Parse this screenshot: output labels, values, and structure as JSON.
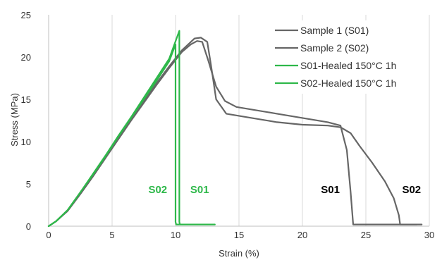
{
  "chart_data": {
    "type": "line",
    "title": "",
    "xlabel": "Strain (%)",
    "ylabel": "Stress (MPa)",
    "xlim": [
      0,
      30
    ],
    "ylim": [
      0,
      25
    ],
    "x_ticks": [
      0,
      5,
      10,
      15,
      20,
      25,
      30
    ],
    "y_ticks": [
      0,
      5,
      10,
      15,
      20,
      25
    ],
    "grid": "vertical",
    "legend_position": "top-right",
    "colors": {
      "gray": "#666666",
      "green": "#2eb84a",
      "annotation_black": "#000000",
      "grid": "#d9d9d9"
    },
    "series": [
      {
        "name": "Sample 1 (S01)",
        "color": "#666666",
        "x": [
          0,
          0.6,
          1.5,
          2.5,
          3.5,
          4.5,
          5.5,
          6.5,
          7.5,
          8.5,
          9.5,
          10.5,
          11.2,
          11.7,
          12.1,
          12.6,
          13.2,
          13.9,
          14.8,
          16,
          18,
          20,
          22,
          23,
          23.5,
          23.8,
          24,
          28,
          29
        ],
        "y": [
          0,
          0.6,
          1.8,
          3.8,
          5.9,
          8.1,
          10.3,
          12.5,
          14.6,
          16.7,
          18.7,
          20.6,
          21.5,
          21.9,
          21.8,
          19.5,
          16.5,
          14.8,
          14.1,
          13.8,
          13.3,
          12.8,
          12.3,
          11.9,
          9,
          4,
          0.2,
          0.2,
          0.2
        ]
      },
      {
        "name": "Sample 2 (S02)",
        "color": "#666666",
        "x": [
          0,
          0.6,
          1.5,
          2.5,
          3.5,
          4.5,
          5.5,
          6.5,
          7.5,
          8.5,
          9.5,
          10.5,
          11.5,
          12,
          12.5,
          12.8,
          13.2,
          14,
          16,
          18,
          20,
          22,
          23,
          23.8,
          24.5,
          25.5,
          26.5,
          27.2,
          27.6,
          27.7,
          29.4
        ],
        "y": [
          0,
          0.6,
          1.9,
          4.0,
          6.1,
          8.3,
          10.5,
          12.7,
          14.8,
          16.9,
          18.9,
          20.8,
          22.2,
          22.3,
          21.8,
          19,
          15,
          13.3,
          12.8,
          12.3,
          12.0,
          11.9,
          11.7,
          11,
          9.5,
          7.5,
          5.3,
          3.3,
          1.3,
          0.2,
          0.2
        ]
      },
      {
        "name": "S01-Healed 150°C 1h",
        "color": "#2eb84a",
        "x": [
          0,
          0.6,
          1.5,
          2.5,
          3.5,
          4.5,
          5.5,
          6.5,
          7.5,
          8.5,
          9.5,
          10.3,
          10.3,
          10.35,
          11,
          13.1
        ],
        "y": [
          0,
          0.6,
          1.9,
          4.0,
          6.2,
          8.4,
          10.7,
          12.9,
          15.2,
          17.5,
          19.8,
          23.1,
          0.5,
          0.2,
          0.2,
          0.2
        ]
      },
      {
        "name": "S02-Healed 150°C 1h",
        "color": "#2eb84a",
        "x": [
          0,
          0.6,
          1.5,
          2.5,
          3.5,
          4.5,
          5.5,
          6.5,
          7.5,
          8.5,
          9.5,
          10.0,
          10.0,
          10.05,
          10.3
        ],
        "y": [
          0,
          0.6,
          1.9,
          4.0,
          6.1,
          8.3,
          10.6,
          12.8,
          15.0,
          17.2,
          19.5,
          21.5,
          0.5,
          0.2,
          0.2
        ]
      }
    ],
    "annotations": [
      {
        "text": "S02",
        "x": 8.6,
        "y": 3.9,
        "color": "#2eb84a"
      },
      {
        "text": "S01",
        "x": 11.9,
        "y": 3.9,
        "color": "#2eb84a"
      },
      {
        "text": "S01",
        "x": 22.2,
        "y": 3.9,
        "color": "#000000"
      },
      {
        "text": "S02",
        "x": 28.6,
        "y": 3.9,
        "color": "#000000"
      }
    ]
  }
}
